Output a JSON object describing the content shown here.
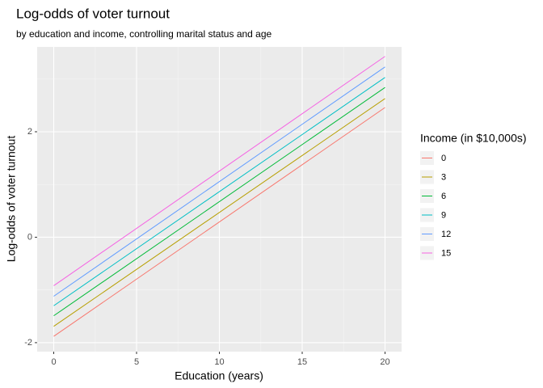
{
  "chart_data": {
    "type": "line",
    "title": "Log-odds of voter turnout",
    "subtitle": "by education and income, controlling marital status and age",
    "x_label": "Education (years)",
    "y_label": "Log-odds of voter turnout",
    "legend_title": "Income (in $10,000s)",
    "legend_position": "right",
    "grid": true,
    "x": [
      0,
      20
    ],
    "xlim": [
      -1,
      21
    ],
    "xticks": [
      0,
      5,
      10,
      15,
      20
    ],
    "ylim": [
      -2.17,
      3.61
    ],
    "yticks": [
      -2,
      0,
      2
    ],
    "series": [
      {
        "name": "0",
        "color": "#F8766D",
        "values": [
          -1.88,
          2.46
        ]
      },
      {
        "name": "3",
        "color": "#B79F00",
        "values": [
          -1.69,
          2.63
        ]
      },
      {
        "name": "6",
        "color": "#00BA38",
        "values": [
          -1.49,
          2.84
        ]
      },
      {
        "name": "9",
        "color": "#00BFC4",
        "values": [
          -1.3,
          3.03
        ]
      },
      {
        "name": "12",
        "color": "#619CFF",
        "values": [
          -1.12,
          3.23
        ]
      },
      {
        "name": "15",
        "color": "#F564E3",
        "values": [
          -0.92,
          3.43
        ]
      }
    ]
  }
}
